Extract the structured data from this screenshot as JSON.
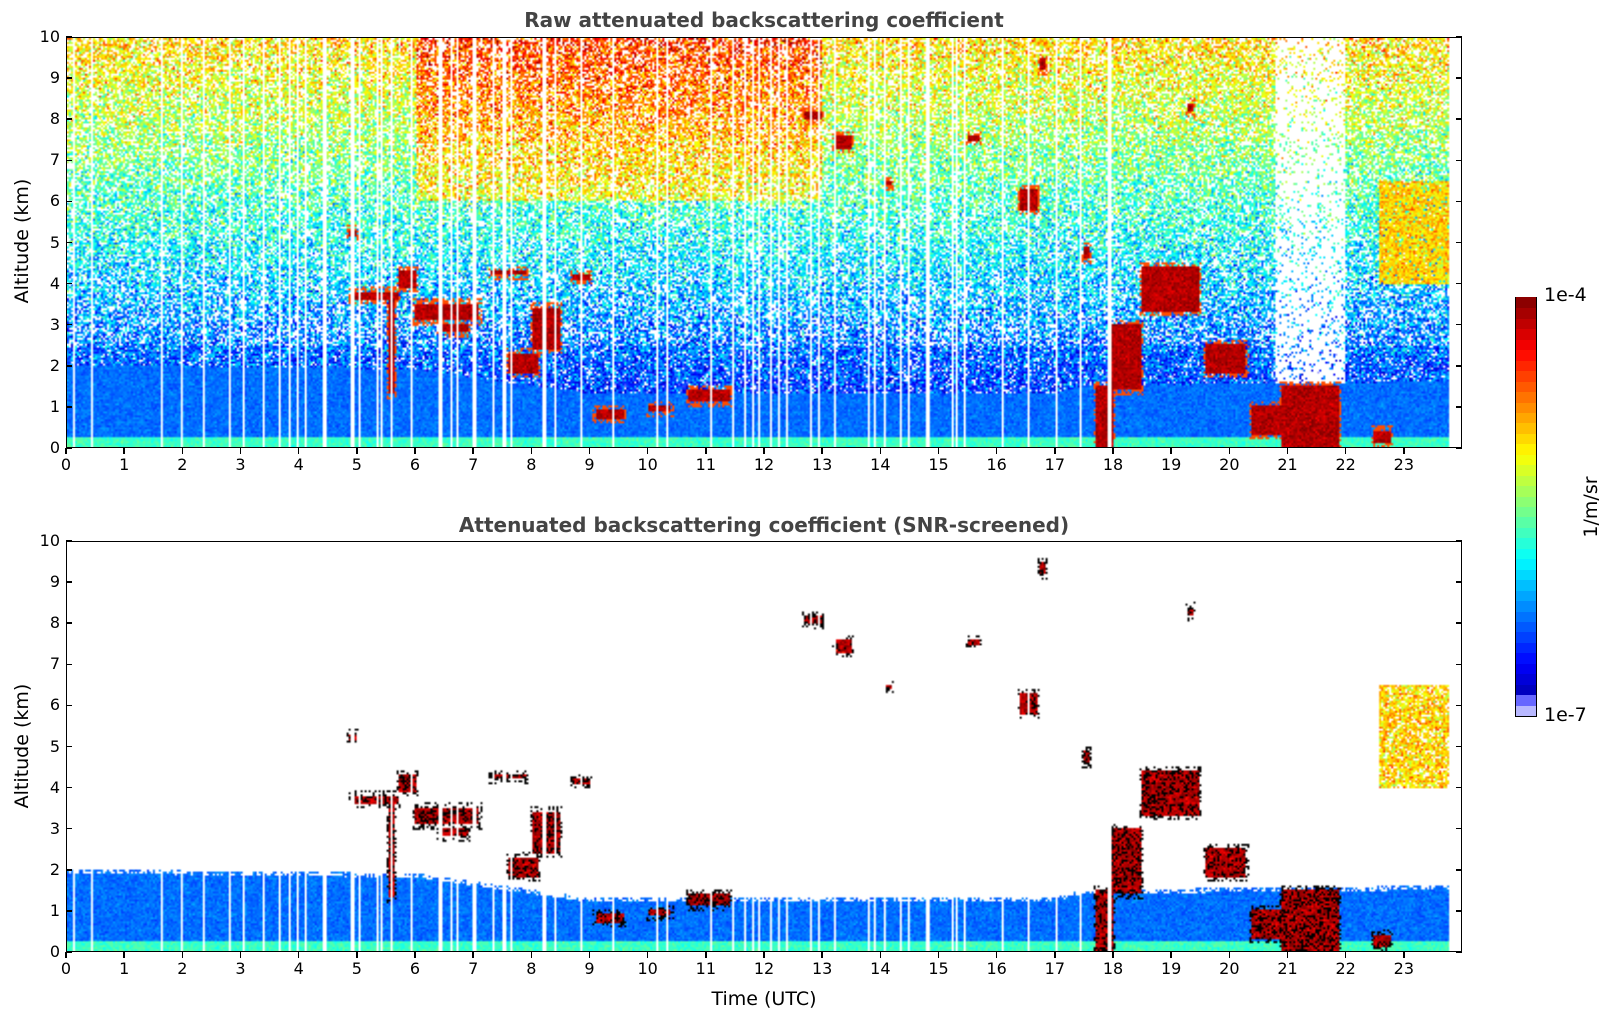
{
  "chart_data": [
    {
      "type": "heatmap",
      "title": "Raw attenuated backscattering coefficient",
      "xlabel": "",
      "ylabel": "Altitude (km)",
      "xlim": [
        0,
        24
      ],
      "ylim": [
        0,
        10
      ],
      "xticks": [
        "0",
        "1",
        "2",
        "3",
        "4",
        "5",
        "6",
        "7",
        "8",
        "9",
        "10",
        "11",
        "12",
        "13",
        "14",
        "15",
        "16",
        "17",
        "18",
        "19",
        "20",
        "21",
        "22",
        "23"
      ],
      "yticks": [
        "0",
        "1",
        "2",
        "3",
        "4",
        "5",
        "6",
        "7",
        "8",
        "9",
        "10"
      ],
      "screened": false
    },
    {
      "type": "heatmap",
      "title": "Attenuated backscattering coefficient (SNR-screened)",
      "xlabel": "Time (UTC)",
      "ylabel": "Altitude (km)",
      "xlim": [
        0,
        24
      ],
      "ylim": [
        0,
        10
      ],
      "xticks": [
        "0",
        "1",
        "2",
        "3",
        "4",
        "5",
        "6",
        "7",
        "8",
        "9",
        "10",
        "11",
        "12",
        "13",
        "14",
        "15",
        "16",
        "17",
        "18",
        "19",
        "20",
        "21",
        "22",
        "23"
      ],
      "yticks": [
        "0",
        "1",
        "2",
        "3",
        "4",
        "5",
        "6",
        "7",
        "8",
        "9",
        "10"
      ],
      "screened": true
    }
  ],
  "colorbar": {
    "label": "1/m/sr",
    "max_label": "1e-4",
    "min_label": "1e-7",
    "log_range": [
      -7,
      -4
    ],
    "colormap": "jet"
  },
  "boundary_layer_km": [
    [
      0,
      2.0
    ],
    [
      6,
      1.9
    ],
    [
      9,
      1.3
    ],
    [
      17,
      1.3
    ],
    [
      17.5,
      1.5
    ],
    [
      24,
      1.6
    ]
  ],
  "cloud_layers": [
    [
      4.85,
      5.0,
      5.15,
      5.3
    ],
    [
      4.9,
      5.7,
      3.6,
      3.8
    ],
    [
      5.7,
      6.0,
      3.9,
      4.3
    ],
    [
      5.55,
      5.65,
      1.3,
      3.8
    ],
    [
      6.0,
      7.1,
      3.1,
      3.5
    ],
    [
      6.4,
      6.9,
      2.8,
      3.0
    ],
    [
      7.3,
      7.9,
      4.2,
      4.3
    ],
    [
      7.6,
      8.1,
      1.8,
      2.3
    ],
    [
      8.0,
      8.5,
      2.4,
      3.4
    ],
    [
      8.7,
      9.0,
      4.1,
      4.2
    ],
    [
      9.1,
      9.6,
      0.7,
      0.9
    ],
    [
      10.0,
      10.4,
      0.85,
      1.0
    ],
    [
      10.7,
      11.4,
      1.1,
      1.4
    ],
    [
      12.7,
      13.0,
      8.0,
      8.2
    ],
    [
      13.2,
      13.5,
      7.3,
      7.6
    ],
    [
      14.1,
      14.2,
      6.4,
      6.5
    ],
    [
      15.5,
      15.7,
      7.5,
      7.6
    ],
    [
      16.4,
      16.7,
      5.8,
      6.3
    ],
    [
      17.5,
      17.6,
      4.6,
      4.9
    ],
    [
      17.7,
      18.0,
      0,
      1.5
    ],
    [
      18.0,
      18.5,
      1.4,
      3.0
    ],
    [
      18.5,
      19.5,
      3.3,
      4.4
    ],
    [
      19.3,
      19.4,
      8.2,
      8.4
    ],
    [
      19.6,
      20.3,
      1.8,
      2.5
    ],
    [
      20.4,
      21.0,
      0.3,
      1.0
    ],
    [
      20.9,
      21.9,
      0,
      1.5
    ],
    [
      22.5,
      22.8,
      0.1,
      0.4
    ],
    [
      16.75,
      16.85,
      9.2,
      9.5
    ]
  ],
  "aerosol_layers": [
    [
      22.6,
      23.8,
      4.0,
      6.5
    ]
  ]
}
